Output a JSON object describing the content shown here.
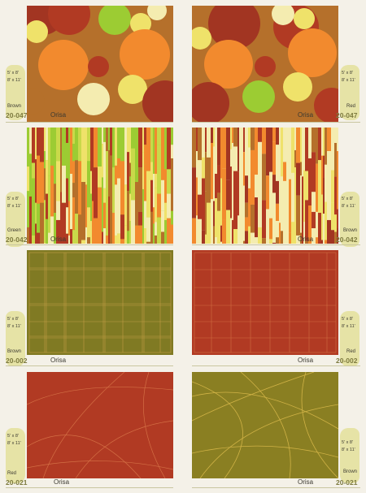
{
  "palette": {
    "brown": "#b5702b",
    "orange": "#f28a2e",
    "red": "#b13a23",
    "rust": "#a23522",
    "lime": "#9ccc33",
    "cream": "#f4ecb0",
    "yellow": "#efe26a",
    "olive": "#807a23",
    "tab": "#e6e3a6"
  },
  "rows": [
    {
      "left": {
        "sizes": [
          "5' x 8'",
          "8' x 11'"
        ],
        "color": "Brown",
        "code": "20-047",
        "name": "Orisa",
        "pattern": "circles-brown"
      },
      "right": {
        "sizes": [
          "5' x 8'",
          "8' x 11'"
        ],
        "color": "Red",
        "code": "20-047",
        "name": "Orisa",
        "pattern": "circles-red"
      }
    },
    {
      "left": {
        "sizes": [
          "5' x 8'",
          "8' x 11'"
        ],
        "color": "Green",
        "code": "20-042",
        "name": "Orisa",
        "pattern": "stripes-green"
      },
      "right": {
        "sizes": [
          "5' x 8'",
          "8' x 11'"
        ],
        "color": "Brown",
        "code": "20-042",
        "name": "Orisa",
        "pattern": "stripes-brown"
      }
    },
    {
      "left": {
        "sizes": [
          "5' x 8'",
          "8' x 11'"
        ],
        "color": "Brown",
        "code": "20-002",
        "name": "Orisa",
        "pattern": "grid-olive"
      },
      "right": {
        "sizes": [
          "5' x 8'",
          "8' x 11'"
        ],
        "color": "Red",
        "code": "20-002",
        "name": "Orisa",
        "pattern": "grid-red"
      }
    },
    {
      "left": {
        "sizes": [
          "5' x 8'",
          "8' x 11'"
        ],
        "color": "Red",
        "code": "20-021",
        "name": "Orisa",
        "pattern": "curves-red"
      },
      "right": {
        "sizes": [
          "5' x 8'",
          "8' x 11'"
        ],
        "color": "Brown",
        "code": "20-021",
        "name": "Orisa",
        "pattern": "curves-olive"
      }
    }
  ]
}
